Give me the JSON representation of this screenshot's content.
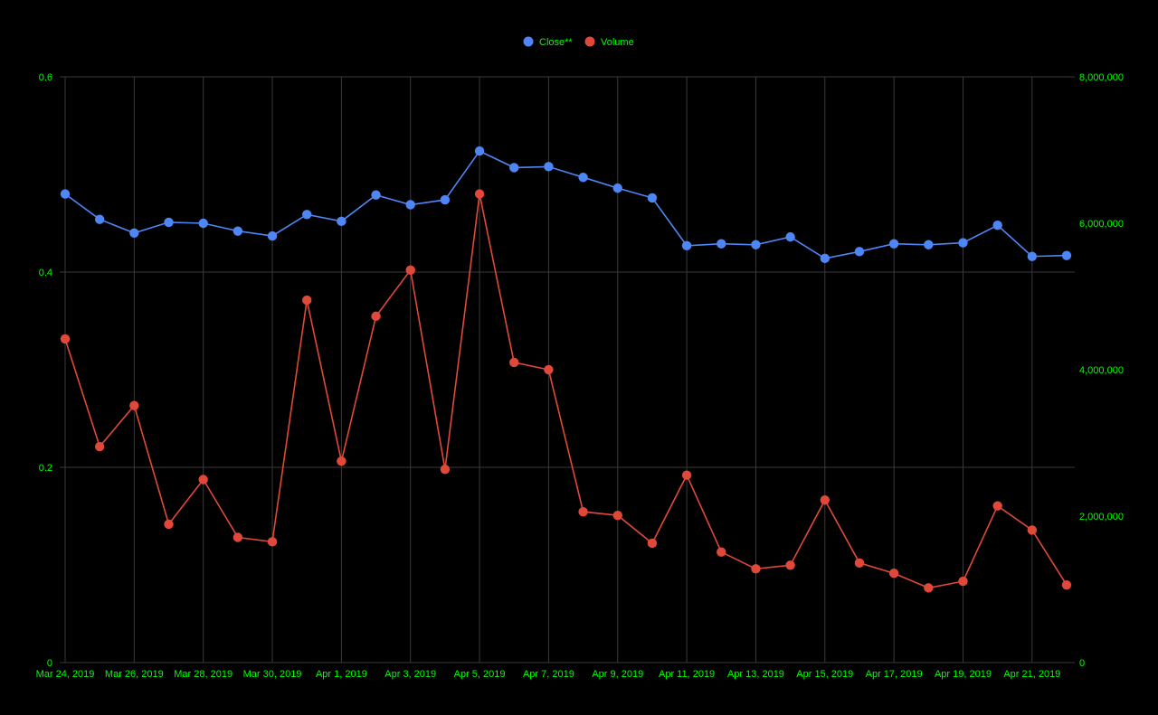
{
  "colors": {
    "background": "#000000",
    "grid": "#3a3a3a",
    "tick_text": "#00ff00",
    "close": "#4f86f5",
    "volume": "#e0483a"
  },
  "chart_data": {
    "type": "line",
    "x": [
      "Mar 24, 2019",
      "Mar 25, 2019",
      "Mar 26, 2019",
      "Mar 27, 2019",
      "Mar 28, 2019",
      "Mar 29, 2019",
      "Mar 30, 2019",
      "Mar 31, 2019",
      "Apr 1, 2019",
      "Apr 2, 2019",
      "Apr 3, 2019",
      "Apr 4, 2019",
      "Apr 5, 2019",
      "Apr 6, 2019",
      "Apr 7, 2019",
      "Apr 8, 2019",
      "Apr 9, 2019",
      "Apr 10, 2019",
      "Apr 11, 2019",
      "Apr 12, 2019",
      "Apr 13, 2019",
      "Apr 14, 2019",
      "Apr 15, 2019",
      "Apr 16, 2019",
      "Apr 17, 2019",
      "Apr 18, 2019",
      "Apr 19, 2019",
      "Apr 20, 2019",
      "Apr 21, 2019",
      "Apr 22, 2019"
    ],
    "x_tick_labels": [
      "Mar 24, 2019",
      "Mar 26, 2019",
      "Mar 28, 2019",
      "Mar 30, 2019",
      "Apr 1, 2019",
      "Apr 3, 2019",
      "Apr 5, 2019",
      "Apr 7, 2019",
      "Apr 9, 2019",
      "Apr 11, 2019",
      "Apr 13, 2019",
      "Apr 15, 2019",
      "Apr 17, 2019",
      "Apr 19, 2019",
      "Apr 21, 2019"
    ],
    "series": [
      {
        "name": "Close**",
        "axis": "left",
        "values": [
          0.48,
          0.454,
          0.44,
          0.451,
          0.45,
          0.442,
          0.437,
          0.459,
          0.452,
          0.479,
          0.469,
          0.474,
          0.524,
          0.507,
          0.508,
          0.497,
          0.486,
          0.476,
          0.427,
          0.429,
          0.428,
          0.436,
          0.414,
          0.421,
          0.429,
          0.428,
          0.43,
          0.448,
          0.416,
          0.417
        ]
      },
      {
        "name": "Volume",
        "axis": "right",
        "values": [
          4420000,
          2950000,
          3510000,
          1890000,
          2500000,
          1710000,
          1650000,
          4950000,
          2750000,
          4730000,
          5360000,
          2640000,
          6400000,
          4100000,
          4000000,
          2060000,
          2010000,
          1630000,
          2560000,
          1510000,
          1280000,
          1330000,
          2220000,
          1360000,
          1220000,
          1020000,
          1110000,
          2140000,
          1810000,
          1060000
        ]
      }
    ],
    "y_left": {
      "min": 0,
      "max": 0.6,
      "ticks": [
        0,
        0.2,
        0.4,
        0.6
      ],
      "tick_labels": [
        "0",
        "0.2",
        "0.4",
        "0.6"
      ]
    },
    "y_right": {
      "min": 0,
      "max": 8000000,
      "ticks": [
        0,
        2000000,
        4000000,
        6000000,
        8000000
      ],
      "tick_labels": [
        "0",
        "2,000,000",
        "4,000,000",
        "6,000,000",
        "8,000,000"
      ]
    },
    "title": "",
    "xlabel": "",
    "ylabel": "",
    "grid": true,
    "legend_position": "top-center"
  }
}
